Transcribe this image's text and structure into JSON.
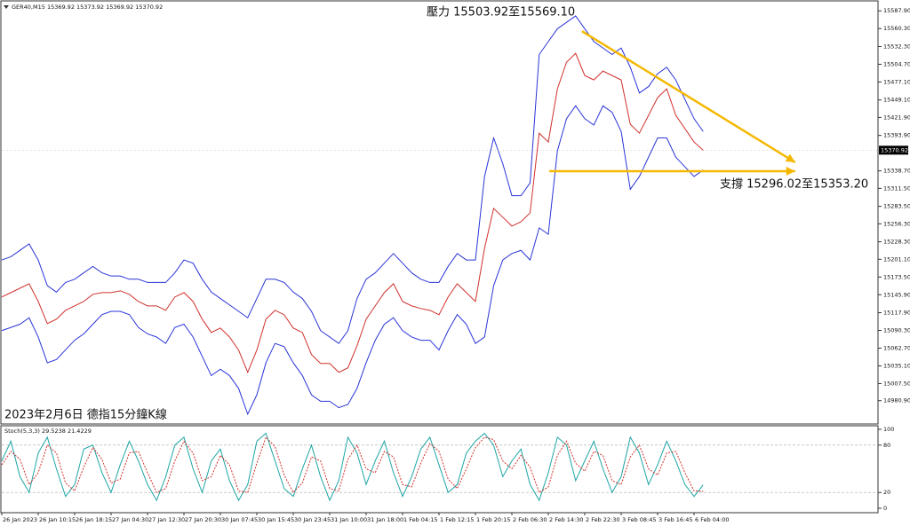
{
  "chart_data": [
    {
      "type": "line",
      "title": "GER40,M15  15369.92 15373.92 15369.92 15370.92",
      "annotations": [
        "壓力 15503.92至15569.10",
        "支撐 15296.02至15353.20",
        "2023年2月6日 德指15分鐘K線"
      ],
      "categories": [
        "26 Jan 2023",
        null,
        null,
        null,
        "26 Jan 10:15",
        null,
        null,
        null,
        "26 Jan 18:15",
        null,
        null,
        null,
        "27 Jan 04:30",
        null,
        null,
        null,
        "27 Jan 12:30",
        null,
        null,
        null,
        "27 Jan 20:30",
        null,
        null,
        null,
        "30 Jan 07:45",
        null,
        null,
        null,
        "30 Jan 15:45",
        null,
        null,
        null,
        "30 Jan 23:45",
        null,
        null,
        null,
        "31 Jan 10:00",
        null,
        null,
        null,
        "31 Jan 18:00",
        null,
        null,
        null,
        "1 Feb 04:15",
        null,
        null,
        null,
        "1 Feb 12:15",
        null,
        null,
        null,
        "1 Feb 20:15",
        null,
        null,
        null,
        "2 Feb 06:30",
        null,
        null,
        null,
        "2 Feb 14:30",
        null,
        null,
        null,
        "2 Feb 22:30",
        null,
        null,
        null,
        "3 Feb 08:45",
        null,
        null,
        null,
        "3 Feb 16:45",
        null,
        null,
        null,
        "6 Feb 04:00",
        null
      ],
      "series": [
        {
          "color": "#2a35d8",
          "values": [
            15200,
            15205,
            15215,
            15225,
            15200,
            15160,
            15150,
            15165,
            15170,
            15180,
            15190,
            15180,
            15175,
            15175,
            15170,
            15170,
            15165,
            15165,
            15165,
            15180,
            15200,
            15195,
            15170,
            15150,
            15140,
            15130,
            15120,
            15110,
            15140,
            15170,
            15170,
            15165,
            15150,
            15140,
            15120,
            15090,
            15080,
            15070,
            15090,
            15140,
            15170,
            15180,
            15195,
            15210,
            15195,
            15180,
            15170,
            15165,
            15165,
            15190,
            15210,
            15200,
            15200,
            15330,
            15390,
            15350,
            15300,
            15300,
            15320,
            15520,
            15540,
            15560,
            15570,
            15580,
            15560,
            15540,
            15530,
            15520,
            15530,
            15500,
            15460,
            15470,
            15490,
            15500,
            15480,
            15450,
            15420,
            15400
          ]
        },
        {
          "color": "#2a35d8",
          "values": [
            15090,
            15095,
            15100,
            15110,
            15080,
            15040,
            15045,
            15060,
            15075,
            15085,
            15100,
            15115,
            15120,
            15120,
            15115,
            15095,
            15085,
            15080,
            15070,
            15095,
            15100,
            15080,
            15050,
            15020,
            15030,
            15020,
            15000,
            14960,
            14990,
            15040,
            15070,
            15065,
            15040,
            15020,
            14990,
            14980,
            14980,
            14970,
            14975,
            15000,
            15040,
            15075,
            15100,
            15110,
            15090,
            15080,
            15075,
            15075,
            15060,
            15090,
            15115,
            15100,
            15070,
            15080,
            15160,
            15200,
            15210,
            15215,
            15200,
            15250,
            15240,
            15370,
            15420,
            15440,
            15420,
            15410,
            15440,
            15430,
            15400,
            15310,
            15330,
            15360,
            15390,
            15390,
            15360,
            15345,
            15330,
            15340
          ]
        },
        {
          "color": "#d0312d",
          "values": [
            15142.3,
            15149.2,
            15156.1,
            15163.0,
            15135.4,
            15100.9,
            15107.8,
            15121.6,
            15128.5,
            15135.4,
            15146.5,
            15149.2,
            15149.2,
            15152.0,
            15146.5,
            15135.4,
            15128.5,
            15128.5,
            15121.6,
            15142.3,
            15149.2,
            15135.4,
            15107.8,
            15087.1,
            15094.0,
            15080.2,
            15059.6,
            15025.1,
            15059.6,
            15107.8,
            15121.6,
            15114.7,
            15094.0,
            15087.1,
            15052.7,
            15038.9,
            15038.9,
            15025.1,
            15032.0,
            15066.4,
            15107.8,
            15128.5,
            15149.2,
            15163.0,
            15135.4,
            15128.5,
            15124.4,
            15121.6,
            15114.7,
            15142.3,
            15163.0,
            15149.2,
            15135.4,
            15218.2,
            15280.3,
            15266.5,
            15252.7,
            15259.6,
            15273.4,
            15397.5,
            15383.7,
            15466.5,
            15507.9,
            15521.7,
            15487.2,
            15480.3,
            15494.1,
            15487.2,
            15480.3,
            15411.3,
            15397.5,
            15425.1,
            15452.7,
            15466.5,
            15425.1,
            15404.4,
            15383.7,
            15370.9
          ]
        }
      ],
      "trendlines": [
        {
          "x": [
            63.7,
            87.1
          ],
          "y": [
            15556.2,
            15352
          ],
          "color": "#f5b800"
        },
        {
          "x": [
            60.1,
            87.1
          ],
          "y": [
            15338.2,
            15338.2
          ],
          "color": "#f5b800"
        }
      ],
      "current_price": {
        "value": 15370.92,
        "label": "15370.92"
      },
      "ylim": [
        14946,
        15602
      ],
      "yticks": [
        {
          "value": 15587.9,
          "label": "15587.90"
        },
        {
          "value": 15560.3,
          "label": "15560.30"
        },
        {
          "value": 15532.3,
          "label": "15532.30"
        },
        {
          "value": 15504.7,
          "label": "15504.70"
        },
        {
          "value": 15477.1,
          "label": "15477.10"
        },
        {
          "value": 15449.1,
          "label": "15449.10"
        },
        {
          "value": 15421.9,
          "label": "15421.90"
        },
        {
          "value": 15393.9,
          "label": "15393.90"
        },
        {
          "value": 15338.7,
          "label": "15338.70"
        },
        {
          "value": 15311.5,
          "label": "15311.50"
        },
        {
          "value": 15283.5,
          "label": "15283.50"
        },
        {
          "value": 15256.3,
          "label": "15256.30"
        },
        {
          "value": 15228.3,
          "label": "15228.30"
        },
        {
          "value": 15201.1,
          "label": "15201.10"
        },
        {
          "value": 15173.5,
          "label": "15173.50"
        },
        {
          "value": 15145.9,
          "label": "15145.90"
        },
        {
          "value": 15117.9,
          "label": "15117.90"
        },
        {
          "value": 15090.3,
          "label": "15090.30"
        },
        {
          "value": 15062.7,
          "label": "15062.70"
        },
        {
          "value": 15035.1,
          "label": "15035.10"
        },
        {
          "value": 15007.5,
          "label": "15007.50"
        },
        {
          "value": 14980.9,
          "label": "14980.90"
        }
      ]
    },
    {
      "type": "line",
      "title": "Stoch(5,3,3) 29.5238 21.4229",
      "series": [
        {
          "color": "#1fa5a5",
          "values": [
            60,
            85,
            40,
            20,
            70,
            90,
            50,
            15,
            30,
            75,
            80,
            45,
            20,
            55,
            85,
            60,
            30,
            10,
            40,
            80,
            90,
            50,
            20,
            60,
            75,
            35,
            10,
            30,
            85,
            95,
            60,
            25,
            15,
            50,
            80,
            40,
            10,
            35,
            90,
            70,
            30,
            60,
            85,
            45,
            15,
            40,
            75,
            90,
            55,
            20,
            30,
            70,
            85,
            95,
            80,
            40,
            60,
            75,
            30,
            10,
            45,
            90,
            80,
            35,
            60,
            85,
            50,
            20,
            40,
            90,
            70,
            30,
            55,
            85,
            60,
            30,
            15,
            29.5
          ]
        },
        {
          "color": "#d0312d",
          "dashed": true,
          "values": [
            55,
            72,
            62,
            30,
            45,
            80,
            70,
            32,
            22,
            52,
            77,
            62,
            32,
            37,
            70,
            72,
            45,
            20,
            25,
            60,
            85,
            70,
            35,
            40,
            67,
            55,
            22,
            20,
            57,
            90,
            78,
            42,
            20,
            32,
            65,
            60,
            25,
            22,
            62,
            80,
            50,
            45,
            72,
            65,
            30,
            27,
            57,
            82,
            72,
            37,
            25,
            50,
            77,
            90,
            87,
            60,
            50,
            67,
            52,
            20,
            27,
            67,
            85,
            57,
            47,
            72,
            67,
            35,
            30,
            65,
            80,
            50,
            42,
            70,
            72,
            45,
            22,
            21.4
          ]
        }
      ],
      "ylim": [
        -5.6,
        104.5
      ],
      "yticks": [
        100,
        80,
        20,
        0
      ]
    }
  ]
}
